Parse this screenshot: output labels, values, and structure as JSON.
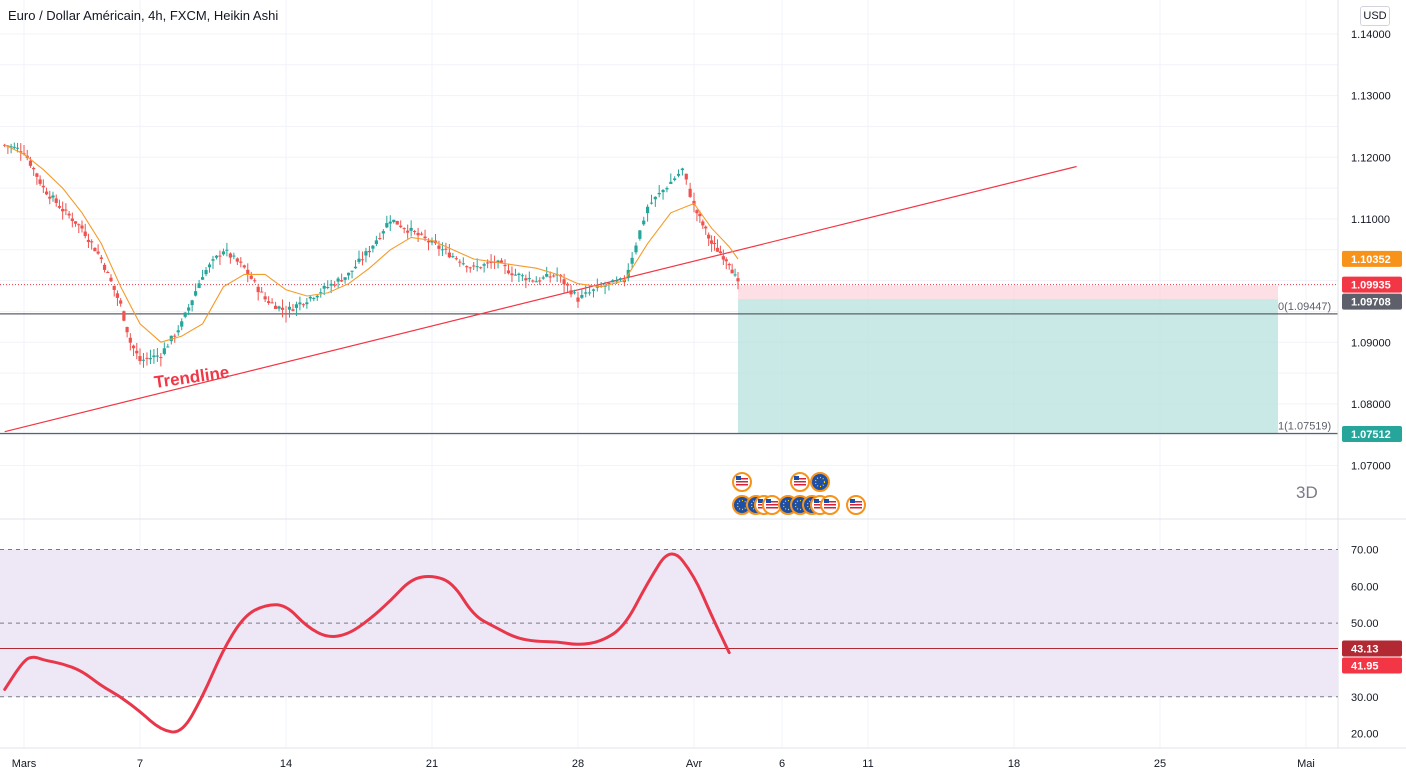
{
  "header": {
    "title": "Euro / Dollar Américain, 4h, FXCM, Heikin Ashi",
    "currency": "USD"
  },
  "labels": {
    "trendline": "Trendline",
    "timeframe": "3D",
    "fib_0": "0(1.09447)",
    "fib_1": "1(1.07519)"
  },
  "colors": {
    "up": "#26a69a",
    "down": "#ef5350",
    "trendline": "#f23645",
    "ma": "#f59b2a",
    "rsi": "#e8374a",
    "target_zone": "#b2dfdb",
    "stop_zone": "#fbd3da",
    "rsi_band": "#ede7f6",
    "orange_tag": "#f7931a",
    "red_tag": "#f23645",
    "gray_tag": "#5d606b",
    "green_tag": "#26a69a",
    "dark_red_tag": "#b22833"
  },
  "chart_data": [
    {
      "type": "candlestick",
      "title": "Euro / Dollar Américain, 4h, FXCM, Heikin Ashi",
      "x_ticks": [
        "Mars",
        "7",
        "14",
        "21",
        "28",
        "Avr",
        "6",
        "11",
        "18",
        "25",
        "Mai"
      ],
      "y_ticks": [
        "1.14000",
        "1.13000",
        "1.12000",
        "1.11000",
        "1.09000",
        "1.08000",
        "1.07000"
      ],
      "ylim": [
        1.0615,
        1.1455
      ],
      "price_tags": [
        {
          "value": "1.10352",
          "price": 1.10352,
          "color": "orange"
        },
        {
          "value": "1.09935",
          "price": 1.09935,
          "color": "red"
        },
        {
          "value": "1.09708",
          "price": 1.09708,
          "color": "gray"
        },
        {
          "value": "1.07512",
          "price": 1.07512,
          "color": "green"
        }
      ],
      "horizontal_lines": [
        1.0946,
        1.0752
      ],
      "current_price": 1.09935,
      "trendline": {
        "from": {
          "x": "Feb 28",
          "price": 1.0755
        },
        "to": {
          "x": "Apr 22",
          "price": 1.1185
        }
      },
      "position": {
        "entry": 1.097,
        "stop": 1.0992,
        "target": 1.0752
      },
      "ohlc_anchors": [
        {
          "x": "Feb 28 12:00",
          "price": 1.122
        },
        {
          "x": "Mar 1",
          "price": 1.121
        },
        {
          "x": "Mar 2",
          "price": 1.115
        },
        {
          "x": "Mar 3",
          "price": 1.1115
        },
        {
          "x": "Mar 4",
          "price": 1.1085
        },
        {
          "x": "Mar 5",
          "price": 1.1035
        },
        {
          "x": "Mar 6",
          "price": 1.096
        },
        {
          "x": "Mar 6 12:00",
          "price": 1.09
        },
        {
          "x": "Mar 7",
          "price": 1.087
        },
        {
          "x": "Mar 8",
          "price": 1.088
        },
        {
          "x": "Mar 9",
          "price": 1.093
        },
        {
          "x": "Mar 10",
          "price": 1.101
        },
        {
          "x": "Mar 11",
          "price": 1.105
        },
        {
          "x": "Mar 12",
          "price": 1.102
        },
        {
          "x": "Mar 13",
          "price": 1.097
        },
        {
          "x": "Mar 14",
          "price": 1.095
        },
        {
          "x": "Mar 15",
          "price": 1.097
        },
        {
          "x": "Mar 16",
          "price": 1.099
        },
        {
          "x": "Mar 17",
          "price": 1.101
        },
        {
          "x": "Mar 18",
          "price": 1.105
        },
        {
          "x": "Mar 19",
          "price": 1.11
        },
        {
          "x": "Mar 20",
          "price": 1.108
        },
        {
          "x": "Mar 21",
          "price": 1.106
        },
        {
          "x": "Mar 22",
          "price": 1.104
        },
        {
          "x": "Mar 23",
          "price": 1.102
        },
        {
          "x": "Mar 24",
          "price": 1.103
        },
        {
          "x": "Mar 25",
          "price": 1.101
        },
        {
          "x": "Mar 26",
          "price": 1.1
        },
        {
          "x": "Mar 27",
          "price": 1.101
        },
        {
          "x": "Mar 28",
          "price": 1.097
        },
        {
          "x": "Mar 29",
          "price": 1.099
        },
        {
          "x": "Mar 30",
          "price": 1.1
        },
        {
          "x": "Mar 31",
          "price": 1.112
        },
        {
          "x": "Apr 1",
          "price": 1.116
        },
        {
          "x": "Apr 1 12:00",
          "price": 1.118
        },
        {
          "x": "Apr 2",
          "price": 1.112
        },
        {
          "x": "Apr 3",
          "price": 1.106
        },
        {
          "x": "Apr 4",
          "price": 1.103
        },
        {
          "x": "Apr 4 12:00",
          "price": 1.0993
        }
      ],
      "moving_average_anchors": [
        {
          "x": "Feb 28 12:00",
          "price": 1.122
        },
        {
          "x": "Mar 1",
          "price": 1.1205
        },
        {
          "x": "Mar 2",
          "price": 1.118
        },
        {
          "x": "Mar 3",
          "price": 1.115
        },
        {
          "x": "Mar 4",
          "price": 1.111
        },
        {
          "x": "Mar 5",
          "price": 1.106
        },
        {
          "x": "Mar 6",
          "price": 1.099
        },
        {
          "x": "Mar 7",
          "price": 1.093
        },
        {
          "x": "Mar 8",
          "price": 1.09
        },
        {
          "x": "Mar 9",
          "price": 1.091
        },
        {
          "x": "Mar 10",
          "price": 1.093
        },
        {
          "x": "Mar 11",
          "price": 1.099
        },
        {
          "x": "Mar 12",
          "price": 1.101
        },
        {
          "x": "Mar 13",
          "price": 1.101
        },
        {
          "x": "Mar 14",
          "price": 1.0985
        },
        {
          "x": "Mar 15",
          "price": 1.0975
        },
        {
          "x": "Mar 16",
          "price": 1.098
        },
        {
          "x": "Mar 17",
          "price": 1.0995
        },
        {
          "x": "Mar 18",
          "price": 1.102
        },
        {
          "x": "Mar 19",
          "price": 1.105
        },
        {
          "x": "Mar 20",
          "price": 1.107
        },
        {
          "x": "Mar 21",
          "price": 1.1065
        },
        {
          "x": "Mar 22",
          "price": 1.105
        },
        {
          "x": "Mar 23",
          "price": 1.1035
        },
        {
          "x": "Mar 24",
          "price": 1.103
        },
        {
          "x": "Mar 25",
          "price": 1.1025
        },
        {
          "x": "Mar 26",
          "price": 1.102
        },
        {
          "x": "Mar 27",
          "price": 1.101
        },
        {
          "x": "Mar 28",
          "price": 1.0995
        },
        {
          "x": "Mar 29",
          "price": 1.099
        },
        {
          "x": "Mar 30",
          "price": 1.1
        },
        {
          "x": "Mar 31",
          "price": 1.106
        },
        {
          "x": "Apr 1",
          "price": 1.111
        },
        {
          "x": "Apr 2",
          "price": 1.1125
        },
        {
          "x": "Apr 3",
          "price": 1.1085
        },
        {
          "x": "Apr 4",
          "price": 1.1055
        },
        {
          "x": "Apr 4 12:00",
          "price": 1.1035
        }
      ],
      "events": [
        {
          "type": "us"
        },
        {
          "type": "us"
        },
        {
          "type": "eu"
        },
        {
          "type": "eu"
        },
        {
          "type": "eu"
        },
        {
          "type": "us"
        },
        {
          "type": "us"
        },
        {
          "type": "eu"
        },
        {
          "type": "eu"
        },
        {
          "type": "eu"
        },
        {
          "type": "us"
        },
        {
          "type": "us"
        },
        {
          "type": "us"
        }
      ]
    },
    {
      "type": "line",
      "y_ticks": [
        "70.00",
        "60.00",
        "50.00",
        "30.00",
        "20.00"
      ],
      "ylim": [
        16.1,
        78.0
      ],
      "band": [
        30,
        70
      ],
      "midline": 50,
      "levels": [
        {
          "value": "43.13",
          "y": 43.13
        },
        {
          "value": "41.95",
          "y": 41.95
        }
      ],
      "level_line": 43.13,
      "points": [
        {
          "x": "Feb 28",
          "y": 32
        },
        {
          "x": "Mar 1",
          "y": 40
        },
        {
          "x": "Mar 1 12:00",
          "y": 41
        },
        {
          "x": "Mar 2",
          "y": 40
        },
        {
          "x": "Mar 3",
          "y": 39
        },
        {
          "x": "Mar 4",
          "y": 37
        },
        {
          "x": "Mar 5",
          "y": 33
        },
        {
          "x": "Mar 6",
          "y": 30
        },
        {
          "x": "Mar 7",
          "y": 26
        },
        {
          "x": "Mar 8",
          "y": 21
        },
        {
          "x": "Mar 9",
          "y": 20
        },
        {
          "x": "Mar 10",
          "y": 30
        },
        {
          "x": "Mar 11",
          "y": 43
        },
        {
          "x": "Mar 12",
          "y": 52
        },
        {
          "x": "Mar 13",
          "y": 55
        },
        {
          "x": "Mar 14",
          "y": 55
        },
        {
          "x": "Mar 15",
          "y": 49
        },
        {
          "x": "Mar 16",
          "y": 46
        },
        {
          "x": "Mar 17",
          "y": 47
        },
        {
          "x": "Mar 18",
          "y": 51
        },
        {
          "x": "Mar 19",
          "y": 56
        },
        {
          "x": "Mar 20",
          "y": 62
        },
        {
          "x": "Mar 21",
          "y": 63
        },
        {
          "x": "Mar 22",
          "y": 61
        },
        {
          "x": "Mar 23",
          "y": 52
        },
        {
          "x": "Mar 24",
          "y": 49
        },
        {
          "x": "Mar 25",
          "y": 46
        },
        {
          "x": "Mar 26",
          "y": 45
        },
        {
          "x": "Mar 27",
          "y": 45
        },
        {
          "x": "Mar 28",
          "y": 44
        },
        {
          "x": "Mar 29",
          "y": 45
        },
        {
          "x": "Mar 30",
          "y": 49
        },
        {
          "x": "Mar 31",
          "y": 61
        },
        {
          "x": "Apr 1",
          "y": 71
        },
        {
          "x": "Apr 2",
          "y": 63
        },
        {
          "x": "Apr 3",
          "y": 52
        },
        {
          "x": "Apr 4",
          "y": 42
        }
      ]
    }
  ]
}
